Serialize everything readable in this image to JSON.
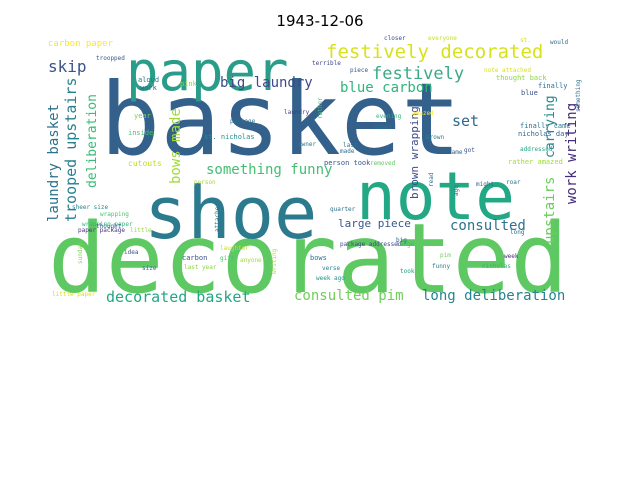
{
  "title": "1943-12-06",
  "chart_data": {
    "type": "wordcloud",
    "title": "1943-12-06",
    "words": [
      {
        "text": "basket",
        "color": "#33618c"
      },
      {
        "text": "decorated",
        "color": "#5ec962"
      },
      {
        "text": "shoe",
        "color": "#2b7a8e"
      },
      {
        "text": "note",
        "color": "#22a884"
      },
      {
        "text": "paper",
        "color": "#2a9d8a"
      },
      {
        "text": "festively decorated",
        "color": "#d8e219"
      },
      {
        "text": "festively",
        "color": "#3ba985"
      },
      {
        "text": "big laundry",
        "color": "#3e4a89"
      },
      {
        "text": "blue carbon",
        "color": "#2fb47c"
      },
      {
        "text": "skip",
        "color": "#3b528b"
      },
      {
        "text": "laundry basket",
        "color": "#2c728e"
      },
      {
        "text": "trooped upstairs",
        "color": "#27808e"
      },
      {
        "text": "deliberation",
        "color": "#3aba76"
      },
      {
        "text": "bows made",
        "color": "#a0da39"
      },
      {
        "text": "something funny",
        "color": "#42be71"
      },
      {
        "text": "set",
        "color": "#31688e"
      },
      {
        "text": "upstairs",
        "color": "#6ccd5a"
      },
      {
        "text": "carrying",
        "color": "#24878e"
      },
      {
        "text": "work writing",
        "color": "#472d7b"
      },
      {
        "text": "consulted",
        "color": "#2c728e"
      },
      {
        "text": "brown wrapping",
        "color": "#3e4c8a"
      },
      {
        "text": "decorated basket",
        "color": "#22a785"
      },
      {
        "text": "consulted pim",
        "color": "#6ece58"
      },
      {
        "text": "long deliberation",
        "color": "#25848e"
      },
      {
        "text": "large piece",
        "color": "#39568c"
      },
      {
        "text": "carbon paper",
        "color": "#fde725"
      },
      {
        "text": "troopped",
        "color": "#38598c"
      },
      {
        "text": "aloud",
        "color": "#2d708e"
      },
      {
        "text": "work",
        "color": "#31688e"
      },
      {
        "text": "pink",
        "color": "#8fd744"
      },
      {
        "text": "year",
        "color": "#7ad151"
      },
      {
        "text": "inside",
        "color": "#4ac16d"
      },
      {
        "text": "st. nicholas",
        "color": "#21918c"
      },
      {
        "text": "laundry",
        "color": "#433e85"
      },
      {
        "text": "owner",
        "color": "#2a788e"
      },
      {
        "text": "made",
        "color": "#2e6e8e"
      },
      {
        "text": "closer",
        "color": "#3e4a89"
      },
      {
        "text": "everyone",
        "color": "#c2df23"
      },
      {
        "text": "st.",
        "color": "#d2e21b"
      },
      {
        "text": "would",
        "color": "#2f6c8e"
      },
      {
        "text": "terrible",
        "color": "#3f4889"
      },
      {
        "text": "piece",
        "color": "#3a548c"
      },
      {
        "text": "note attached",
        "color": "#d8e219"
      },
      {
        "text": "thought back",
        "color": "#8bd646"
      },
      {
        "text": "finally",
        "color": "#2c728e"
      },
      {
        "text": "blue",
        "color": "#3b528b"
      },
      {
        "text": "finally came",
        "color": "#2c738e"
      },
      {
        "text": "nicholas day",
        "color": "#33638d"
      },
      {
        "text": "addressed",
        "color": "#21a685"
      },
      {
        "text": "rather amazed",
        "color": "#9fda3a"
      },
      {
        "text": "evening",
        "color": "#2fb47c"
      },
      {
        "text": "sheer",
        "color": "#2c728e"
      },
      {
        "text": "brown",
        "color": "#26828e"
      },
      {
        "text": "cutouts",
        "color": "#c0df25"
      },
      {
        "text": "person took",
        "color": "#3a548c"
      },
      {
        "text": "removed",
        "color": "#5ec962"
      },
      {
        "text": "came",
        "color": "#34618d"
      },
      {
        "text": "read",
        "color": "#2e6f8e"
      },
      {
        "text": "might",
        "color": "#365d8d"
      },
      {
        "text": "sheer size",
        "color": "#24868e"
      },
      {
        "text": "wrapping paper",
        "color": "#2fb47c"
      },
      {
        "text": "paper package",
        "color": "#46337f"
      },
      {
        "text": "wrapping",
        "color": "#48c16e"
      },
      {
        "text": "thought",
        "color": "#31688e"
      },
      {
        "text": "attached",
        "color": "#2c728e"
      },
      {
        "text": "quarter",
        "color": "#2e6f8e"
      },
      {
        "text": "carbon",
        "color": "#3b528b"
      },
      {
        "text": "last year",
        "color": "#8bd646"
      },
      {
        "text": "bows",
        "color": "#2c728e"
      },
      {
        "text": "verse",
        "color": "#25848e"
      },
      {
        "text": "package addressed",
        "color": "#3f4889"
      },
      {
        "text": "large",
        "color": "#3aba76"
      },
      {
        "text": "pim",
        "color": "#6ece58"
      },
      {
        "text": "funny",
        "color": "#26828e"
      },
      {
        "text": "took",
        "color": "#1fa088"
      },
      {
        "text": "nicholas",
        "color": "#2fb47c"
      },
      {
        "text": "week",
        "color": "#46307e"
      },
      {
        "text": "laughter",
        "color": "#c8e020"
      },
      {
        "text": "gift",
        "color": "#4ac16d"
      },
      {
        "text": "anyone",
        "color": "#a0da39"
      },
      {
        "text": "writing",
        "color": "#b5de2b"
      },
      {
        "text": "week ago",
        "color": "#21918c"
      },
      {
        "text": "little paper",
        "color": "#d5e21a"
      },
      {
        "text": "sunday",
        "color": "#7fd34e"
      },
      {
        "text": "size",
        "color": "#31688e"
      },
      {
        "text": "idea",
        "color": "#3b528b"
      },
      {
        "text": "little",
        "color": "#9bd93c"
      },
      {
        "text": "long",
        "color": "#2c728e"
      },
      {
        "text": "big",
        "color": "#2e6e8e"
      },
      {
        "text": "roar",
        "color": "#2c728e"
      },
      {
        "text": "rather",
        "color": "#4ac16d"
      },
      {
        "text": "ago",
        "color": "#2d708e"
      },
      {
        "text": "got",
        "color": "#3b528b"
      },
      {
        "text": "amazed",
        "color": "#fde725"
      },
      {
        "text": "last",
        "color": "#2a788e"
      },
      {
        "text": "package",
        "color": "#2c728e"
      },
      {
        "text": "something",
        "color": "#2e6e8e"
      },
      {
        "text": "person",
        "color": "#9fda3a"
      }
    ]
  }
}
